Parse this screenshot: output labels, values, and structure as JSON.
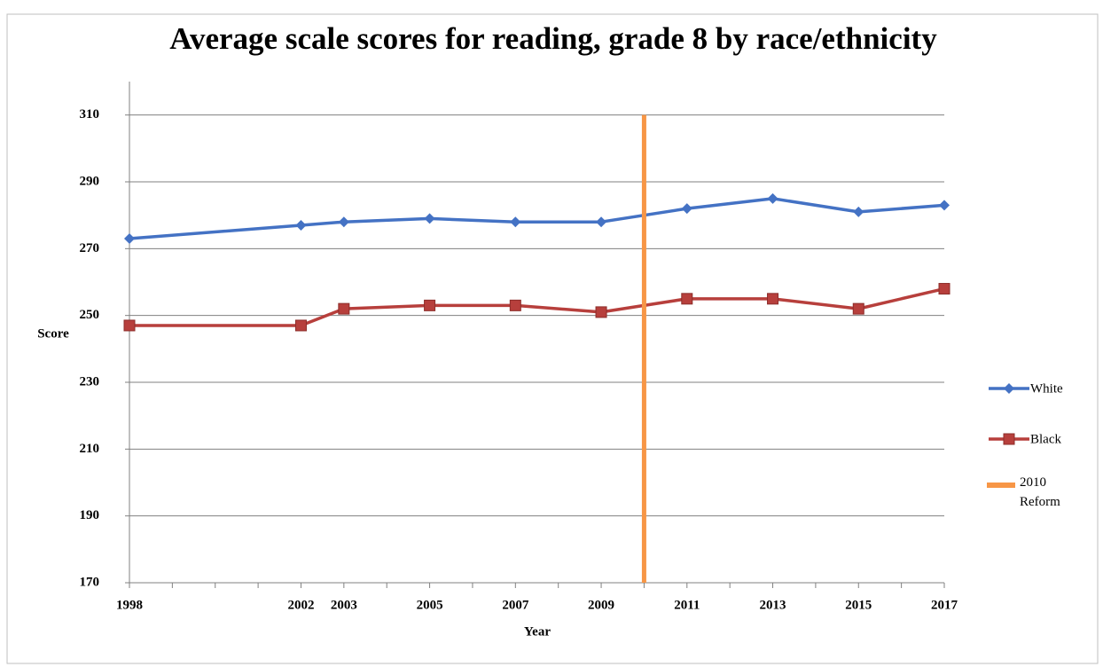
{
  "chart_data": {
    "type": "line",
    "title": "Average scale scores for reading, grade 8 by race/ethnicity",
    "x_label": "Year",
    "y_label": "Score",
    "x": [
      1998,
      2002,
      2003,
      2005,
      2007,
      2009,
      2011,
      2013,
      2015,
      2017
    ],
    "series": [
      {
        "name": "White",
        "color": "#4472c4",
        "marker": "diamond",
        "values": [
          273,
          277,
          278,
          279,
          278,
          278,
          282,
          285,
          281,
          283
        ]
      },
      {
        "name": "Black",
        "color": "#b73f3c",
        "marker": "square",
        "values": [
          247,
          247,
          252,
          253,
          253,
          251,
          255,
          255,
          252,
          258
        ]
      },
      {
        "name": "2010 Reform",
        "color": "#f79646",
        "marker": "none",
        "x": [
          2010,
          2010
        ],
        "values": [
          170,
          310
        ]
      }
    ],
    "xlim": [
      1998,
      2017
    ],
    "xticks": [
      1998,
      2002,
      2003,
      2005,
      2007,
      2009,
      2011,
      2013,
      2015,
      2017
    ],
    "xminorticks": [
      1999,
      2000,
      2001,
      2004,
      2006,
      2008,
      2010,
      2012,
      2014,
      2016
    ],
    "ylim": [
      170,
      320
    ],
    "yticks": [
      170,
      190,
      210,
      230,
      250,
      270,
      290,
      310
    ],
    "grid": true,
    "legend": "right"
  }
}
